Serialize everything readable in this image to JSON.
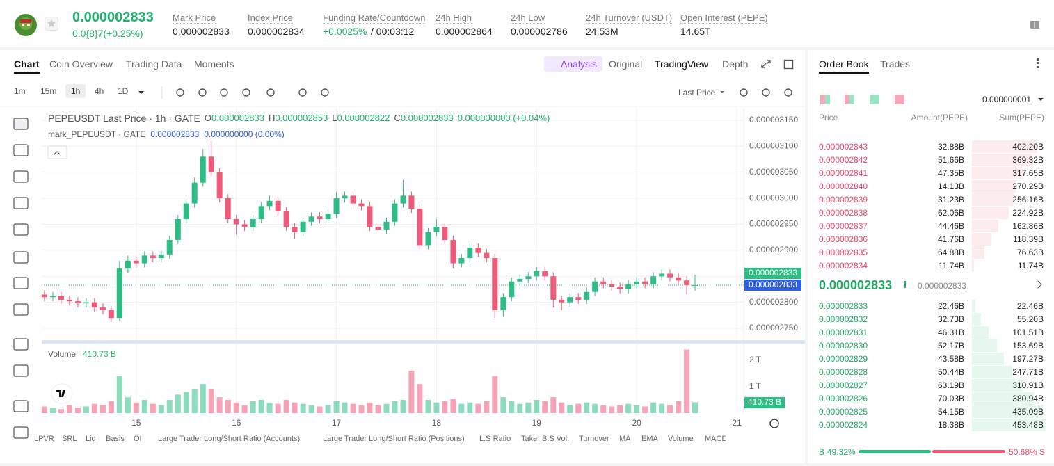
{
  "header": {
    "price": "0.000002833",
    "change": "0.0{8}7(+0.25%)",
    "stats": [
      {
        "label": "Mark Price",
        "value": "0.000002833"
      },
      {
        "label": "Index Price",
        "value": "0.000002834"
      },
      {
        "label": "Funding Rate/Countdown",
        "value": "+0.0025%",
        "countdown": "/ 00:03:12"
      },
      {
        "label": "24h High",
        "value": "0.000002864"
      },
      {
        "label": "24h Low",
        "value": "0.000002786"
      },
      {
        "label": "24h Turnover (USDT)",
        "value": "24.53M"
      },
      {
        "label": "Open Interest (PEPE)",
        "value": "14.65T"
      }
    ]
  },
  "tabs": [
    "Chart",
    "Coin Overview",
    "Trading Data",
    "Moments"
  ],
  "view_tabs": {
    "analysis": "Analysis",
    "others": [
      "Original",
      "TradingView",
      "Depth"
    ]
  },
  "intervals": [
    "1m",
    "15m",
    "1h",
    "4h",
    "1D"
  ],
  "price_type": "Last Price",
  "chart_data": {
    "type": "candlestick",
    "title": "PEPEUSDT Last Price · 1h · GATE",
    "ohlc": [
      {
        "key": "O",
        "value": "0.000002833"
      },
      {
        "key": "H",
        "value": "0.000002853"
      },
      {
        "key": "L",
        "value": "0.000002822"
      },
      {
        "key": "C",
        "value": "0.000002833"
      }
    ],
    "change": "0.000000000 (+0.04%)",
    "mark_title": "mark_PEPEUSDT · GATE",
    "mark_value": "0.000002833",
    "mark_change": "0.000000000 (0.00%)",
    "last_tag": "0.000002833",
    "mark_tag": "0.000002833",
    "up_color": "#2ebd85",
    "down_color": "#ef5a78",
    "grid": true,
    "xlim": [
      14.056,
      21.0625
    ],
    "xticks": [
      15,
      16,
      17,
      18,
      19,
      20,
      21
    ],
    "ylim": [
      2.726e-06,
      3.174e-06
    ],
    "yticks": [
      {
        "value": 3.15e-06,
        "label": "0.000003150"
      },
      {
        "value": 3.1e-06,
        "label": "0.000003100"
      },
      {
        "value": 3.05e-06,
        "label": "0.000003050"
      },
      {
        "value": 3e-06,
        "label": "0.000003000"
      },
      {
        "value": 2.95e-06,
        "label": "0.000002950"
      },
      {
        "value": 2.9e-06,
        "label": "0.000002900"
      },
      {
        "value": 2.85e-06,
        "label": "0.000002850"
      },
      {
        "value": 2.8e-06,
        "label": "0.000002800"
      },
      {
        "value": 2.75e-06,
        "label": "0.000002750"
      }
    ],
    "x": [
      14.083,
      14.167,
      14.25,
      14.333,
      14.417,
      14.5,
      14.583,
      14.667,
      14.75,
      14.833,
      14.917,
      15,
      15.083,
      15.167,
      15.25,
      15.333,
      15.417,
      15.5,
      15.583,
      15.667,
      15.75,
      15.833,
      15.917,
      16,
      16.083,
      16.167,
      16.25,
      16.333,
      16.417,
      16.5,
      16.583,
      16.667,
      16.75,
      16.833,
      16.917,
      17,
      17.083,
      17.167,
      17.25,
      17.333,
      17.417,
      17.5,
      17.583,
      17.667,
      17.75,
      17.833,
      17.917,
      18,
      18.083,
      18.167,
      18.25,
      18.333,
      18.417,
      18.5,
      18.583,
      18.667,
      18.75,
      18.833,
      18.917,
      19,
      19.083,
      19.167,
      19.25,
      19.333,
      19.417,
      19.5,
      19.583,
      19.667,
      19.75,
      19.833,
      19.917,
      20,
      20.083,
      20.167,
      20.25,
      20.333,
      20.417,
      20.5,
      20.583
    ],
    "open": [
      2.815e-06,
      2.81e-06,
      2.812e-06,
      2.805e-06,
      2.802e-06,
      2.798e-06,
      2.8e-06,
      2.79e-06,
      2.785e-06,
      2.77e-06,
      2.865e-06,
      2.88e-06,
      2.875e-06,
      2.89e-06,
      2.885e-06,
      2.892e-06,
      2.92e-06,
      2.96e-06,
      2.99e-06,
      3.03e-06,
      3.08e-06,
      3.05e-06,
      3e-06,
      2.96e-06,
      2.95e-06,
      2.945e-06,
      2.96e-06,
      2.985e-06,
      2.995e-06,
      2.975e-06,
      2.945e-06,
      2.935e-06,
      2.955e-06,
      2.965e-06,
      2.96e-06,
      2.97e-06,
      3e-06,
      3.005e-06,
      2.99e-06,
      2.985e-06,
      2.945e-06,
      2.94e-06,
      2.955e-06,
      2.99e-06,
      3.005e-06,
      2.98e-06,
      2.91e-06,
      2.935e-06,
      2.945e-06,
      2.92e-06,
      2.875e-06,
      2.885e-06,
      2.905e-06,
      2.895e-06,
      2.885e-06,
      2.785e-06,
      2.81e-06,
      2.84e-06,
      2.845e-06,
      2.85e-06,
      2.86e-06,
      2.85e-06,
      2.805e-06,
      2.8e-06,
      2.81e-06,
      2.805e-06,
      2.82e-06,
      2.84e-06,
      2.835e-06,
      2.83e-06,
      2.825e-06,
      2.835e-06,
      2.84e-06,
      2.835e-06,
      2.85e-06,
      2.855e-06,
      2.848e-06,
      2.842e-06,
      2.833e-06
    ],
    "high": [
      2.823e-06,
      2.82e-06,
      2.82e-06,
      2.813e-06,
      2.81e-06,
      2.808e-06,
      2.808e-06,
      2.798e-06,
      2.793e-06,
      2.88e-06,
      2.89e-06,
      2.888e-06,
      2.898e-06,
      2.898e-06,
      2.9e-06,
      2.928e-06,
      2.968e-06,
      2.998e-06,
      3.04e-06,
      3.095e-06,
      3.11e-06,
      3.058e-06,
      3.008e-06,
      2.968e-06,
      2.958e-06,
      2.968e-06,
      2.993e-06,
      3.005e-06,
      3.003e-06,
      2.983e-06,
      2.953e-06,
      2.963e-06,
      2.973e-06,
      2.973e-06,
      2.978e-06,
      3.012e-06,
      3.013e-06,
      3.013e-06,
      2.998e-06,
      2.993e-06,
      2.953e-06,
      2.963e-06,
      2.998e-06,
      3.035e-06,
      3.013e-06,
      2.988e-06,
      2.943e-06,
      2.96e-06,
      2.953e-06,
      2.928e-06,
      2.893e-06,
      2.913e-06,
      2.913e-06,
      2.903e-06,
      2.893e-06,
      2.818e-06,
      2.848e-06,
      2.853e-06,
      2.858e-06,
      2.868e-06,
      2.868e-06,
      2.858e-06,
      2.813e-06,
      2.818e-06,
      2.818e-06,
      2.828e-06,
      2.848e-06,
      2.848e-06,
      2.843e-06,
      2.838e-06,
      2.843e-06,
      2.848e-06,
      2.848e-06,
      2.858e-06,
      2.863e-06,
      2.863e-06,
      2.856e-06,
      2.85e-06,
      2.853e-06
    ],
    "low": [
      2.802e-06,
      2.802e-06,
      2.797e-06,
      2.794e-06,
      2.79e-06,
      2.79e-06,
      2.782e-06,
      2.777e-06,
      2.762e-06,
      2.765e-06,
      2.857e-06,
      2.867e-06,
      2.867e-06,
      2.877e-06,
      2.877e-06,
      2.884e-06,
      2.912e-06,
      2.952e-06,
      2.982e-06,
      3.022e-06,
      3.042e-06,
      2.992e-06,
      2.952e-06,
      2.93e-06,
      2.937e-06,
      2.937e-06,
      2.952e-06,
      2.977e-06,
      2.967e-06,
      2.937e-06,
      2.922e-06,
      2.927e-06,
      2.947e-06,
      2.952e-06,
      2.952e-06,
      2.962e-06,
      2.992e-06,
      2.982e-06,
      2.977e-06,
      2.937e-06,
      2.932e-06,
      2.932e-06,
      2.947e-06,
      2.982e-06,
      2.972e-06,
      2.9e-06,
      2.902e-06,
      2.927e-06,
      2.912e-06,
      2.865e-06,
      2.867e-06,
      2.877e-06,
      2.887e-06,
      2.877e-06,
      2.77e-06,
      2.772e-06,
      2.802e-06,
      2.832e-06,
      2.837e-06,
      2.842e-06,
      2.842e-06,
      2.79e-06,
      2.785e-06,
      2.792e-06,
      2.797e-06,
      2.797e-06,
      2.812e-06,
      2.827e-06,
      2.822e-06,
      2.817e-06,
      2.817e-06,
      2.827e-06,
      2.827e-06,
      2.827e-06,
      2.842e-06,
      2.84e-06,
      2.834e-06,
      2.815e-06,
      2.822e-06
    ],
    "close": [
      2.81e-06,
      2.812e-06,
      2.805e-06,
      2.802e-06,
      2.798e-06,
      2.8e-06,
      2.79e-06,
      2.785e-06,
      2.77e-06,
      2.865e-06,
      2.88e-06,
      2.875e-06,
      2.89e-06,
      2.885e-06,
      2.892e-06,
      2.92e-06,
      2.96e-06,
      2.99e-06,
      3.03e-06,
      3.08e-06,
      3.05e-06,
      3e-06,
      2.96e-06,
      2.95e-06,
      2.945e-06,
      2.96e-06,
      2.985e-06,
      2.995e-06,
      2.975e-06,
      2.945e-06,
      2.935e-06,
      2.955e-06,
      2.965e-06,
      2.96e-06,
      2.97e-06,
      3e-06,
      3.005e-06,
      2.99e-06,
      2.985e-06,
      2.945e-06,
      2.94e-06,
      2.955e-06,
      2.99e-06,
      3.005e-06,
      2.98e-06,
      2.91e-06,
      2.935e-06,
      2.945e-06,
      2.92e-06,
      2.875e-06,
      2.885e-06,
      2.905e-06,
      2.895e-06,
      2.885e-06,
      2.785e-06,
      2.81e-06,
      2.84e-06,
      2.845e-06,
      2.85e-06,
      2.86e-06,
      2.85e-06,
      2.805e-06,
      2.8e-06,
      2.81e-06,
      2.805e-06,
      2.82e-06,
      2.84e-06,
      2.835e-06,
      2.83e-06,
      2.825e-06,
      2.835e-06,
      2.84e-06,
      2.835e-06,
      2.85e-06,
      2.855e-06,
      2.848e-06,
      2.842e-06,
      2.833e-06,
      2.833e-06
    ],
    "volume": {
      "label": "Volume",
      "last_label": "410.73 B",
      "ylim": [
        0,
        2.55
      ],
      "yticks": [
        {
          "value": 2,
          "label": "2 T"
        },
        {
          "value": 1,
          "label": "1 T"
        }
      ],
      "values": [
        0.25,
        0.2,
        0.15,
        0.3,
        0.2,
        0.25,
        0.35,
        0.3,
        0.45,
        1.4,
        0.6,
        0.4,
        0.5,
        0.35,
        0.3,
        0.5,
        0.7,
        0.8,
        0.9,
        1.1,
        0.9,
        0.6,
        0.5,
        0.4,
        0.3,
        0.45,
        0.5,
        0.4,
        0.35,
        0.5,
        0.4,
        0.35,
        0.3,
        0.25,
        0.3,
        0.45,
        0.4,
        0.35,
        0.3,
        0.4,
        0.3,
        0.35,
        0.45,
        0.5,
        1.6,
        1.1,
        0.5,
        0.4,
        0.45,
        0.55,
        0.35,
        0.4,
        0.35,
        0.45,
        1.4,
        0.6,
        0.45,
        0.35,
        0.4,
        0.5,
        0.45,
        0.6,
        0.4,
        0.3,
        0.35,
        0.4,
        0.35,
        0.3,
        0.25,
        0.3,
        0.35,
        0.3,
        0.25,
        0.4,
        0.35,
        0.3,
        0.45,
        2.4,
        0.41
      ]
    }
  },
  "indicators": [
    "LPVR",
    "SRL",
    "Liq",
    "Basis",
    "OI",
    "Large Trader Long/Short Ratio (Accounts)",
    "Large Trader Long/Short Ratio (Positions)",
    "L.S Ratio",
    "Taker B.S Vol.",
    "Turnover",
    "MA",
    "EMA",
    "Volume",
    "MACD"
  ],
  "order_book": {
    "tabs": [
      "Order Book",
      "Trades"
    ],
    "precision": "0.000000001",
    "columns": [
      "Price",
      "Amount(PEPE)",
      "Sum(PEPE)"
    ],
    "asks": {
      "price": [
        "0.000002843",
        "0.000002842",
        "0.000002841",
        "0.000002840",
        "0.000002839",
        "0.000002838",
        "0.000002837",
        "0.000002836",
        "0.000002835",
        "0.000002834"
      ],
      "amount": [
        "32.88B",
        "51.66B",
        "47.35B",
        "14.13B",
        "31.23B",
        "62.06B",
        "44.46B",
        "41.76B",
        "64.88B",
        "11.74B"
      ],
      "sum": [
        402.2,
        369.32,
        317.65,
        270.29,
        256.16,
        224.92,
        162.86,
        118.39,
        76.63,
        11.74
      ],
      "sum_labels": [
        "402.20B",
        "369.32B",
        "317.65B",
        "270.29B",
        "256.16B",
        "224.92B",
        "162.86B",
        "118.39B",
        "76.63B",
        "11.74B"
      ]
    },
    "last": "0.000002833",
    "mark": "0.000002833",
    "bids": {
      "price": [
        "0.000002833",
        "0.000002832",
        "0.000002831",
        "0.000002830",
        "0.000002829",
        "0.000002828",
        "0.000002827",
        "0.000002826",
        "0.000002825",
        "0.000002824"
      ],
      "amount": [
        "22.46B",
        "32.73B",
        "46.31B",
        "52.17B",
        "43.58B",
        "50.44B",
        "63.19B",
        "70.03B",
        "54.15B",
        "18.38B"
      ],
      "sum": [
        22.46,
        55.2,
        101.51,
        153.69,
        197.27,
        247.71,
        310.91,
        380.94,
        435.09,
        453.48
      ],
      "sum_labels": [
        "22.46B",
        "55.20B",
        "101.51B",
        "153.69B",
        "197.27B",
        "247.71B",
        "310.91B",
        "380.94B",
        "435.09B",
        "453.48B"
      ]
    },
    "buy_letter": "B",
    "sell_letter": "S",
    "buy_ratio": 49.32,
    "buy_ratio_label": "49.32%",
    "sell_ratio": 50.68,
    "sell_ratio_label": "50.68%"
  }
}
